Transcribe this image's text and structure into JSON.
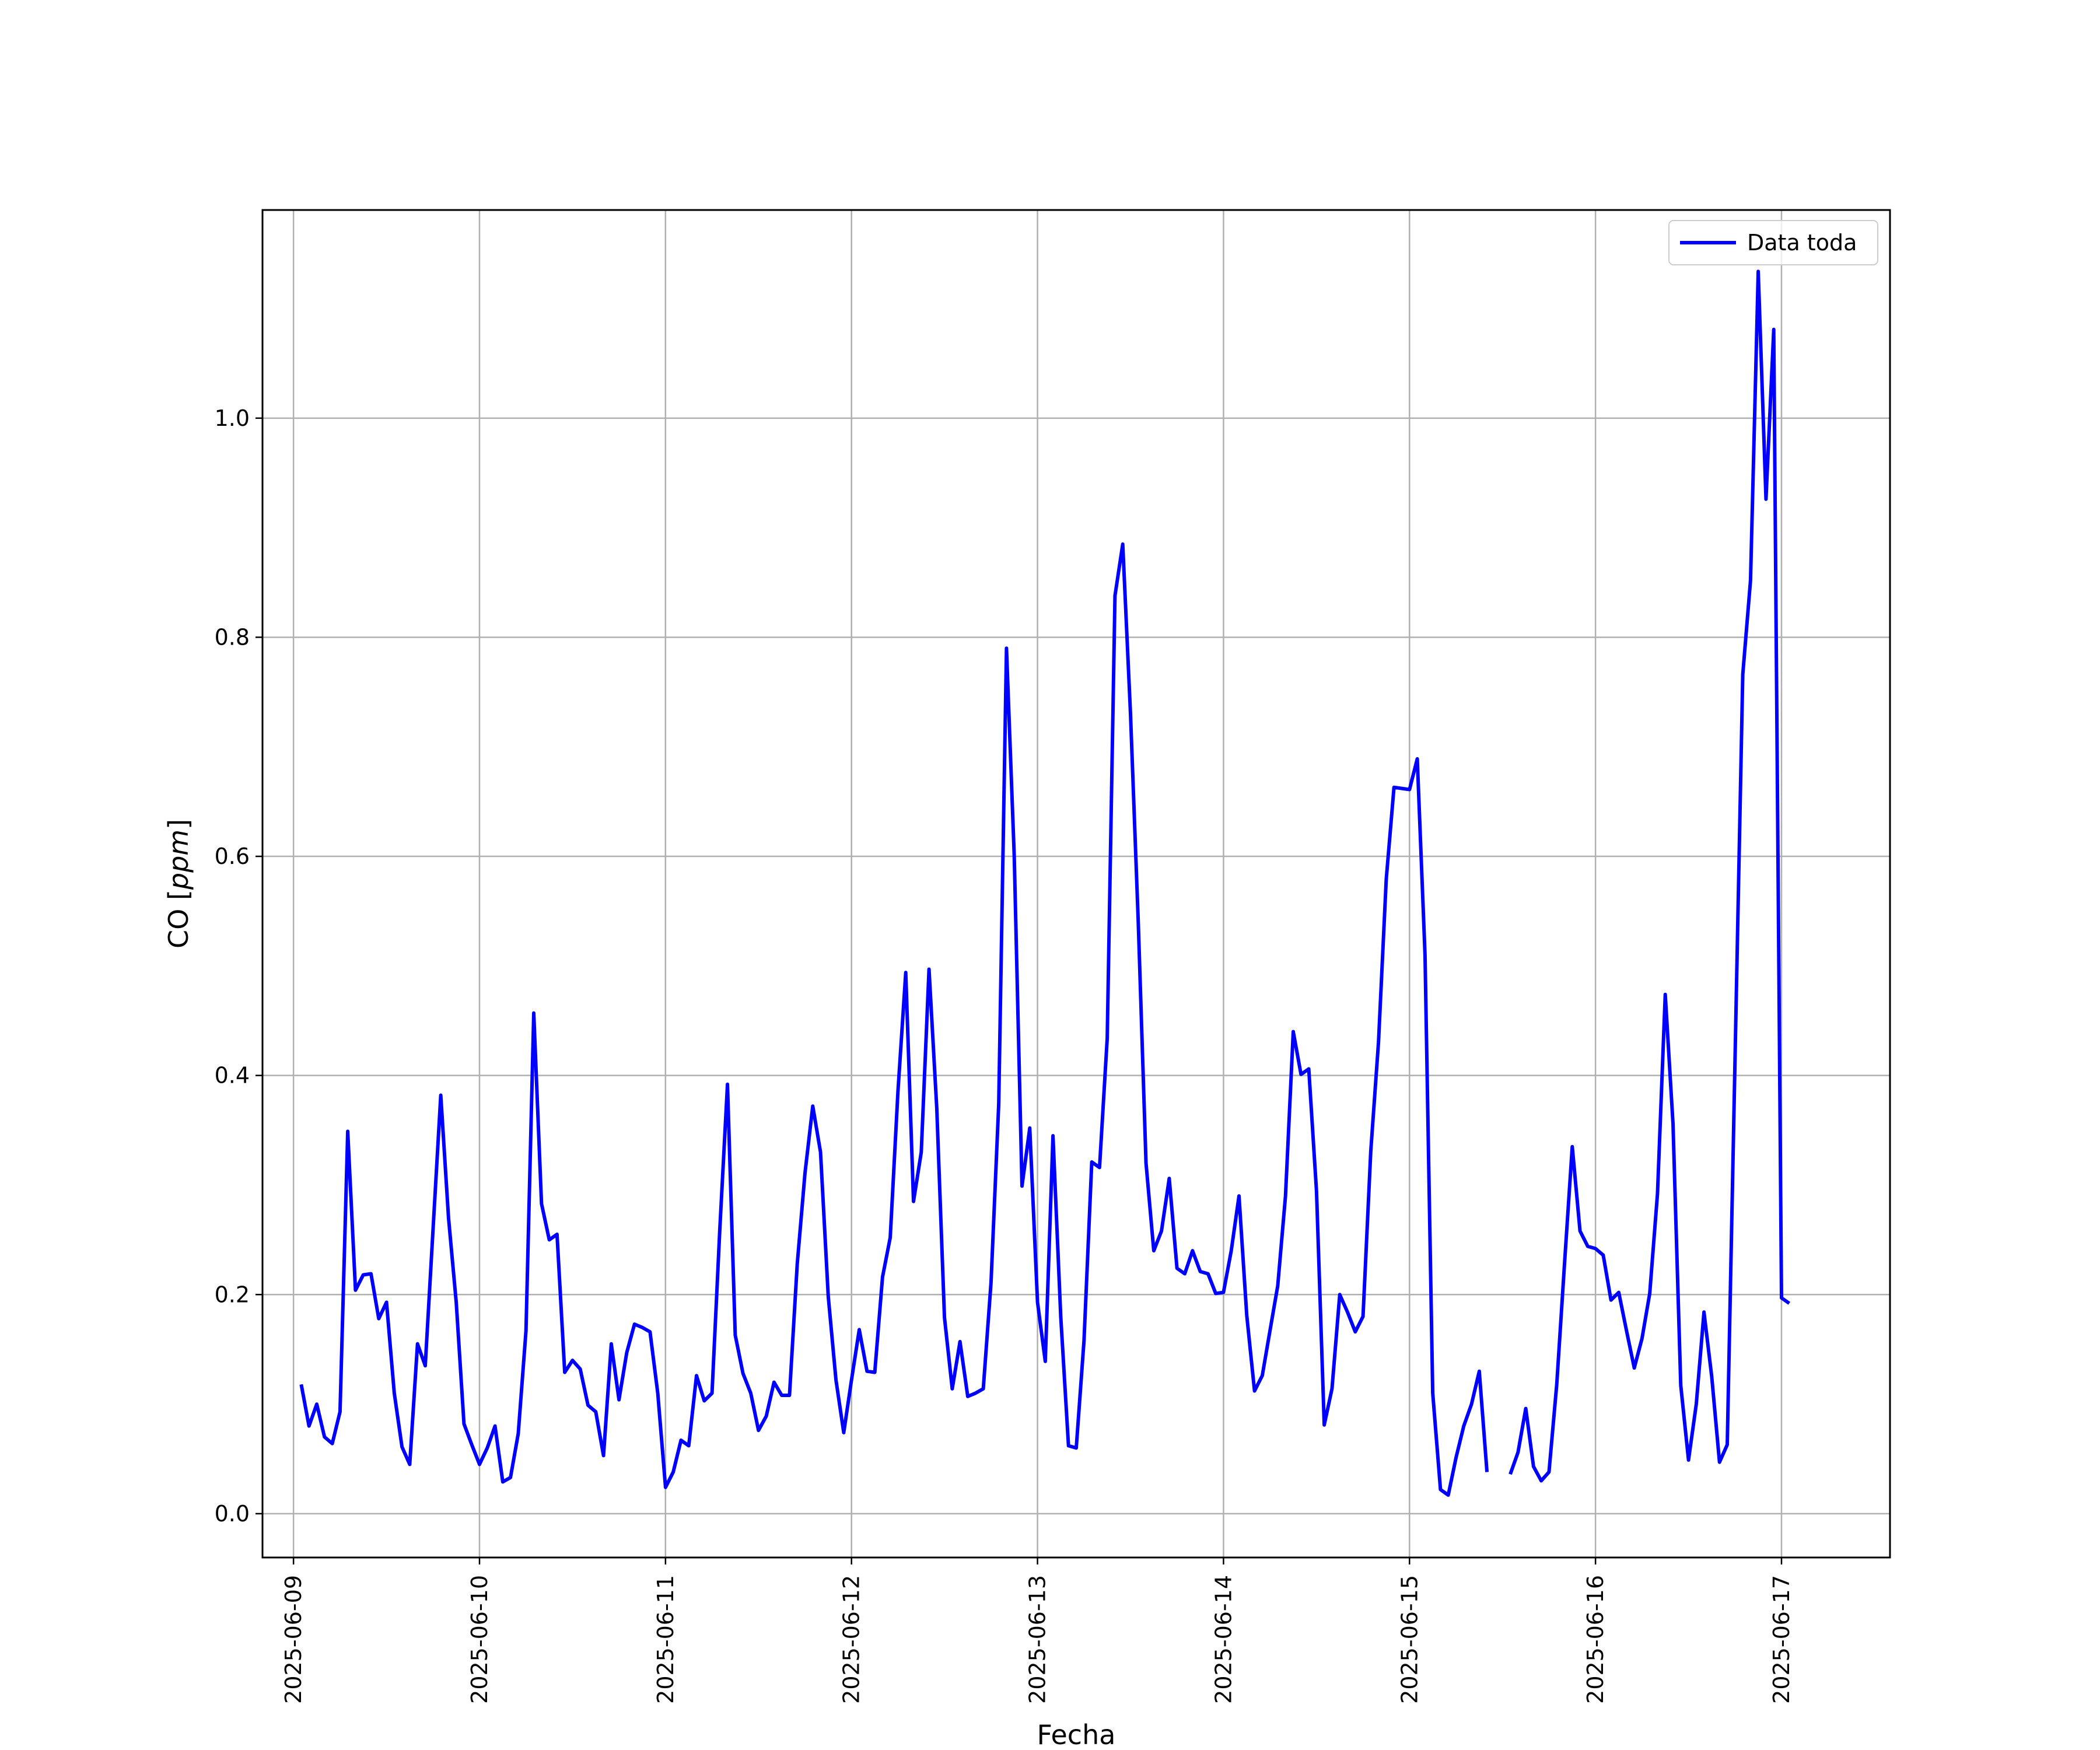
{
  "chart_data": {
    "type": "line",
    "xlabel": "Fecha",
    "ylabel": "CO [ppm]",
    "ylabel_parts": {
      "prefix": "CO [",
      "unit": "ppm",
      "suffix": "]"
    },
    "ylim": [
      -0.04,
      1.19
    ],
    "xlim": [
      "2025-06-08 20:00",
      "2025-06-17 14:00"
    ],
    "grid": true,
    "legend_position": "top-right",
    "x_ticks": [
      "2025-06-09",
      "2025-06-10",
      "2025-06-11",
      "2025-06-12",
      "2025-06-13",
      "2025-06-14",
      "2025-06-15",
      "2025-06-16",
      "2025-06-17"
    ],
    "y_ticks": [
      "0.0",
      "0.2",
      "0.4",
      "0.6",
      "0.8",
      "1.0"
    ],
    "series": [
      {
        "name": "Data toda",
        "color": "#0000ff",
        "x_start": "2025-06-09 01:00",
        "x_step_hours": 1,
        "values": [
          0.118,
          0.08,
          0.1,
          0.07,
          0.064,
          0.093,
          0.349,
          0.204,
          0.218,
          0.219,
          0.178,
          0.193,
          0.11,
          0.061,
          0.045,
          0.155,
          0.135,
          0.259,
          0.382,
          0.27,
          0.193,
          0.082,
          0.063,
          0.045,
          0.06,
          0.08,
          0.029,
          0.033,
          0.073,
          0.167,
          0.457,
          0.283,
          0.25,
          0.255,
          0.129,
          0.14,
          0.132,
          0.099,
          0.093,
          0.053,
          0.155,
          0.104,
          0.147,
          0.173,
          0.17,
          0.166,
          0.11,
          0.024,
          0.038,
          0.067,
          0.062,
          0.126,
          0.103,
          0.11,
          0.259,
          0.392,
          0.163,
          0.128,
          0.11,
          0.076,
          0.089,
          0.12,
          0.108,
          0.108,
          0.228,
          0.311,
          0.372,
          0.33,
          0.198,
          0.122,
          0.074,
          0.122,
          0.168,
          0.13,
          0.129,
          0.216,
          0.252,
          0.386,
          0.494,
          0.285,
          0.33,
          0.497,
          0.37,
          0.179,
          0.114,
          0.157,
          0.107,
          0.11,
          0.114,
          0.211,
          0.374,
          0.79,
          0.6,
          0.299,
          0.352,
          0.193,
          0.139,
          0.345,
          0.18,
          0.062,
          0.06,
          0.158,
          0.321,
          0.316,
          0.434,
          0.838,
          0.885,
          0.73,
          0.54,
          0.32,
          0.24,
          0.258,
          0.306,
          0.224,
          0.219,
          0.24,
          0.221,
          0.219,
          0.201,
          0.202,
          0.24,
          0.29,
          0.181,
          0.112,
          0.126,
          0.167,
          0.208,
          0.29,
          0.44,
          0.401,
          0.406,
          0.294,
          0.081,
          0.114,
          0.2,
          0.184,
          0.166,
          0.18,
          0.331,
          0.43,
          0.579,
          0.663,
          0.662,
          0.661,
          0.689,
          0.51,
          0.11,
          0.022,
          0.017,
          0.051,
          0.08,
          0.1,
          0.13,
          0.038,
          null,
          null,
          0.036,
          0.056,
          0.096,
          0.043,
          0.03,
          0.038,
          0.118,
          0.228,
          0.335,
          0.258,
          0.244,
          0.242,
          0.236,
          0.195,
          0.202,
          0.167,
          0.133,
          0.16,
          0.201,
          0.292,
          0.474,
          0.356,
          0.117,
          0.049,
          0.1,
          0.184,
          0.125,
          0.047,
          0.063,
          0.414,
          0.766,
          0.852,
          1.134,
          0.926,
          1.081,
          0.197,
          0.192
        ]
      }
    ]
  }
}
